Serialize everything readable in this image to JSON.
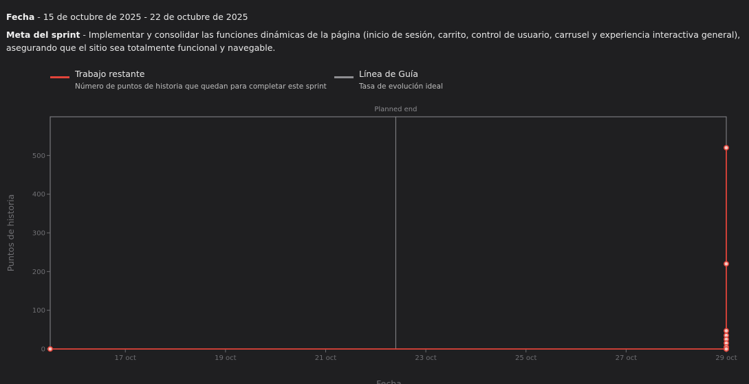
{
  "sprint": {
    "date_label": "Fecha",
    "separator": " - ",
    "date_value": "15 de octubre de 2025 - 22 de octubre de 2025",
    "goal_label": "Meta del sprint",
    "goal_value": "Implementar y consolidar las funciones dinámicas de la página (inicio de sesión, carrito, control de usuario, carrusel y experiencia interactiva general), asegurando que el sitio sea totalmente funcional y navegable."
  },
  "legend": [
    {
      "title": "Trabajo restante",
      "description": "Número de puntos de historia que quedan para completar este sprint",
      "color": "#e2443a"
    },
    {
      "title": "Línea de Guía",
      "description": "Tasa de evolución ideal",
      "color": "#8e8e92"
    }
  ],
  "chart_data": {
    "type": "line",
    "xlabel": "Fecha",
    "ylabel": "Puntos de historia",
    "x_tick_labels": [
      "17 oct",
      "19 oct",
      "21 oct",
      "23 oct",
      "25 oct",
      "27 oct",
      "29 oct"
    ],
    "x_tick_days": [
      17,
      19,
      21,
      23,
      25,
      27,
      29
    ],
    "xlim": [
      15.5,
      29
    ],
    "y_ticks": [
      0,
      100,
      200,
      300,
      400,
      500
    ],
    "ylim": [
      0,
      600
    ],
    "annotations": [
      {
        "text": "Planned end",
        "x": 22.4
      }
    ],
    "series": [
      {
        "name": "Trabajo restante",
        "color": "#e2443a",
        "points": [
          {
            "x": 15.5,
            "y": 0
          },
          {
            "x": 29,
            "y": 0
          },
          {
            "x": 29,
            "y": 520
          },
          {
            "x": 29,
            "y": 220
          },
          {
            "x": 29,
            "y": 47
          },
          {
            "x": 29,
            "y": 35
          },
          {
            "x": 29,
            "y": 25
          },
          {
            "x": 29,
            "y": 15
          },
          {
            "x": 29,
            "y": 5
          },
          {
            "x": 29,
            "y": 0
          }
        ]
      }
    ]
  }
}
